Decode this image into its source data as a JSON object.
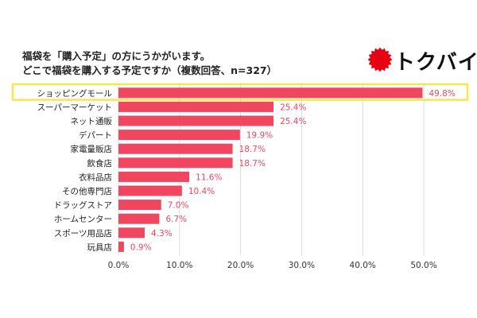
{
  "title_lines": [
    "福袋を「購入予定」の方にうかがいます。",
    "どこで福袋を購入する予定ですか（複数回答、n=327）"
  ],
  "logo": {
    "text": "トクバイ",
    "icon": "red-sun-burst-icon",
    "color": "#e60012"
  },
  "colors": {
    "bar": "#f0465f",
    "label": "#f0465f",
    "highlight": "#f5e94a",
    "grid": "#d9d9d9"
  },
  "chart_data": {
    "type": "bar",
    "orientation": "horizontal",
    "categories": [
      "ショッピングモール",
      "スーパーマーケット",
      "ネット通販",
      "デパート",
      "家電量販店",
      "飲食店",
      "衣料品店",
      "その他専門店",
      "ドラッグストア",
      "ホームセンター",
      "スポーツ用品店",
      "玩具店"
    ],
    "values": [
      49.8,
      25.4,
      25.4,
      19.9,
      18.7,
      18.7,
      11.6,
      10.4,
      7.0,
      6.7,
      4.3,
      0.9
    ],
    "value_labels": [
      "49.8%",
      "25.4%",
      "25.4%",
      "19.9%",
      "18.7%",
      "18.7%",
      "11.6%",
      "10.4%",
      "7.0%",
      "6.7%",
      "4.3%",
      "0.9%"
    ],
    "xlim": [
      0,
      50
    ],
    "xticks": [
      "0.0%",
      "10.0%",
      "20.0%",
      "30.0%",
      "40.0%",
      "50.0%"
    ],
    "grid": true,
    "highlighted_category": "ショッピングモール"
  }
}
